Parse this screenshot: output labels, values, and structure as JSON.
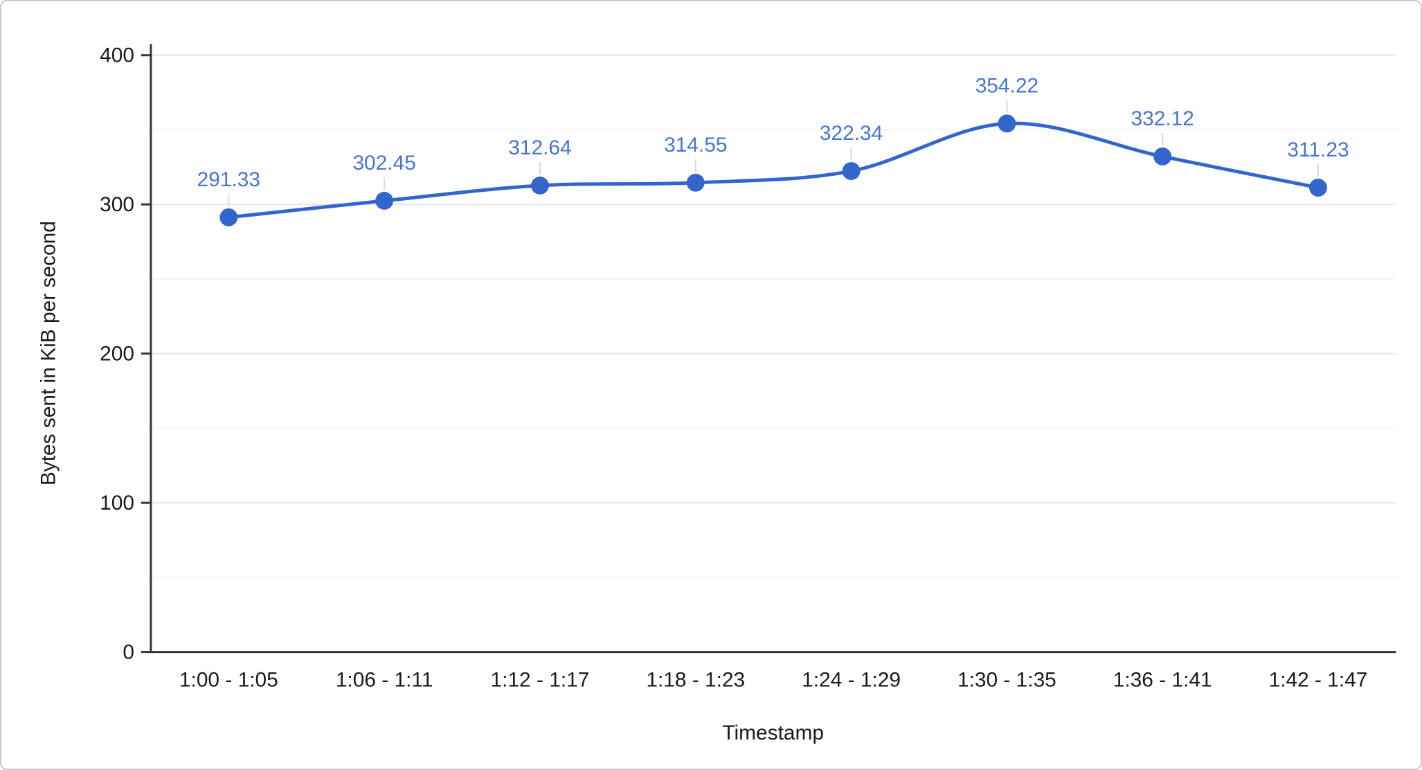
{
  "chart_data": {
    "type": "line",
    "title": "",
    "categories": [
      "1:00 - 1:05",
      "1:06 - 1:11",
      "1:12 - 1:17",
      "1:18 - 1:23",
      "1:24 - 1:29",
      "1:30 - 1:35",
      "1:36 - 1:41",
      "1:42 - 1:47"
    ],
    "values": [
      291.33,
      302.45,
      312.64,
      314.55,
      322.34,
      354.22,
      332.12,
      311.23
    ],
    "point_labels": [
      "291.33",
      "302.45",
      "312.64",
      "314.55",
      "322.34",
      "354.22",
      "332.12",
      "311.23"
    ],
    "xlabel": "Timestamp",
    "ylabel": "Bytes sent in KiB per second",
    "ylim": [
      0,
      400
    ],
    "yticks": [
      0,
      100,
      200,
      300,
      400
    ],
    "ytick_labels": [
      "0",
      "100",
      "200",
      "300",
      "400"
    ],
    "minor_gridline_step": 50,
    "grid": true,
    "legend_position": "none",
    "curve": "smooth",
    "colors": {
      "line": "#3366cc",
      "point": "#3366cc",
      "point_label": "#4575d5",
      "gridline": "#e6e6e6",
      "minor_gridline": "#f4f4f4",
      "axis_line": "#333333",
      "axis_text": "#1a1a1a",
      "annotation_stem": "#d9d9d9"
    }
  }
}
